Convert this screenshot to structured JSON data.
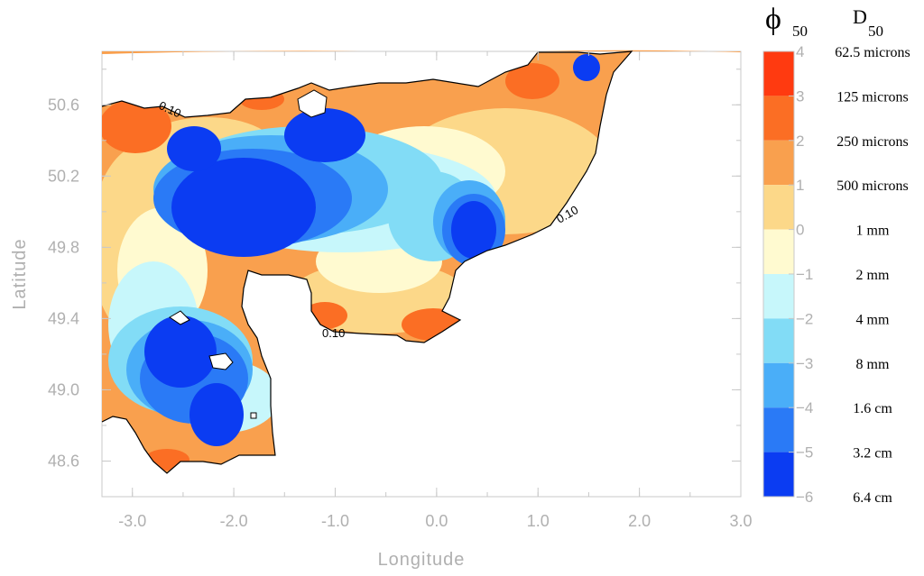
{
  "map": {
    "x_axis": {
      "title": "Longitude",
      "range": [
        -3.3,
        3.0
      ],
      "ticks": [
        -3.0,
        -2.0,
        -1.0,
        0.0,
        1.0,
        2.0,
        3.0
      ],
      "tick_labels": [
        "-3.0",
        "-2.0",
        "-1.0",
        "0.0",
        "1.0",
        "2.0",
        "3.0"
      ]
    },
    "y_axis": {
      "title": "Latitude",
      "range": [
        48.4,
        50.9
      ],
      "ticks": [
        48.6,
        49.0,
        49.4,
        49.8,
        50.2,
        50.6
      ],
      "tick_labels": [
        "48.6",
        "49.0",
        "49.4",
        "49.8",
        "50.2",
        "50.6"
      ]
    },
    "contour_labels": [
      "0.10",
      "0.10",
      "0.10"
    ],
    "colorbar": {
      "header_symbol": "ϕ",
      "header_symbol_sub": "50",
      "header_size": "D",
      "header_size_sub": "50",
      "bands": [
        {
          "phi": "4",
          "size": "62.5 microns",
          "color": "#ff3a10"
        },
        {
          "phi": "3",
          "size": "125 microns",
          "color": "#fb6e24"
        },
        {
          "phi": "2",
          "size": "250 microns",
          "color": "#f9a04e"
        },
        {
          "phi": "1",
          "size": "500 microns",
          "color": "#fcd889"
        },
        {
          "phi": "0",
          "size": "1 mm",
          "color": "#fffad0"
        },
        {
          "phi": "-1",
          "size": "2 mm",
          "color": "#c7f7fb"
        },
        {
          "phi": "-2",
          "size": "4 mm",
          "color": "#82dcf6"
        },
        {
          "phi": "-3",
          "size": "8 mm",
          "color": "#4aaef8"
        },
        {
          "phi": "-4",
          "size": "1.6 cm",
          "color": "#2a7af6"
        },
        {
          "phi": "-5",
          "size": "3.2 cm",
          "color": "#0b3cf2"
        },
        {
          "phi": "-6",
          "size": "6.4 cm",
          "color": ""
        }
      ]
    }
  }
}
